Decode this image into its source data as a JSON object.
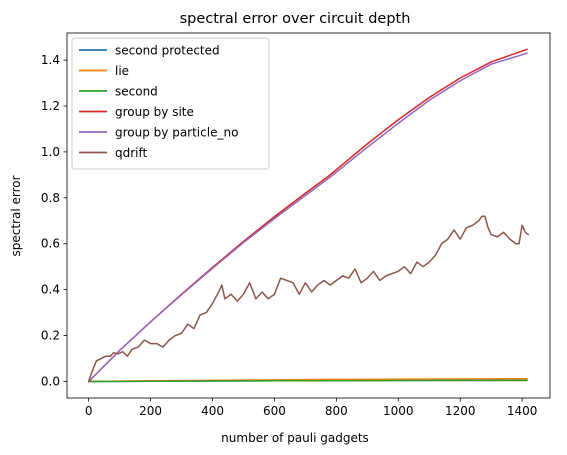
{
  "chart_data": {
    "type": "line",
    "title": "spectral error over circuit depth",
    "xlabel": "number of pauli gadgets",
    "ylabel": "spectral error",
    "xlim": [
      -70,
      1490
    ],
    "ylim": [
      -0.072,
      1.518
    ],
    "xticks": [
      0,
      200,
      400,
      600,
      800,
      1000,
      1200,
      1400
    ],
    "yticks": [
      0.0,
      0.2,
      0.4,
      0.6,
      0.8,
      1.0,
      1.2,
      1.4
    ],
    "ytick_labels": [
      "0.0",
      "0.2",
      "0.4",
      "0.6",
      "0.8",
      "1.0",
      "1.2",
      "1.4"
    ],
    "grid": false,
    "legend_position": "upper-left",
    "series": [
      {
        "name": "second protected",
        "color": "#1f77b4",
        "x": [
          0,
          200,
          400,
          600,
          800,
          1000,
          1200,
          1416
        ],
        "y": [
          0,
          0.001,
          0.002,
          0.003,
          0.004,
          0.004,
          0.005,
          0.005
        ]
      },
      {
        "name": "lie",
        "color": "#ff7f0e",
        "x": [
          0,
          200,
          400,
          600,
          800,
          1000,
          1200,
          1416
        ],
        "y": [
          0,
          0.003,
          0.005,
          0.007,
          0.009,
          0.01,
          0.011,
          0.012
        ]
      },
      {
        "name": "second",
        "color": "#2ca02c",
        "x": [
          0,
          200,
          400,
          600,
          800,
          1000,
          1200,
          1416
        ],
        "y": [
          0,
          0.001,
          0.002,
          0.003,
          0.003,
          0.004,
          0.004,
          0.005
        ]
      },
      {
        "name": "group by site",
        "color": "#d62728",
        "x": [
          0,
          100,
          200,
          300,
          400,
          500,
          600,
          700,
          780,
          900,
          1000,
          1100,
          1200,
          1300,
          1416
        ],
        "y": [
          0,
          0.135,
          0.26,
          0.38,
          0.497,
          0.61,
          0.718,
          0.82,
          0.9,
          1.035,
          1.14,
          1.237,
          1.322,
          1.392,
          1.447
        ]
      },
      {
        "name": "group by particle_no",
        "color": "#9467bd",
        "x": [
          0,
          100,
          200,
          300,
          400,
          500,
          600,
          700,
          780,
          900,
          1000,
          1100,
          1200,
          1300,
          1416
        ],
        "y": [
          0,
          0.135,
          0.26,
          0.378,
          0.493,
          0.605,
          0.71,
          0.81,
          0.89,
          1.02,
          1.125,
          1.225,
          1.31,
          1.382,
          1.43
        ]
      },
      {
        "name": "qdrift",
        "color": "#8c564b",
        "x": [
          0,
          10,
          25,
          40,
          55,
          70,
          80,
          95,
          110,
          125,
          140,
          160,
          180,
          200,
          220,
          240,
          260,
          280,
          300,
          320,
          340,
          360,
          380,
          400,
          420,
          430,
          440,
          460,
          480,
          500,
          520,
          540,
          560,
          580,
          600,
          620,
          640,
          660,
          680,
          700,
          720,
          740,
          760,
          780,
          800,
          820,
          840,
          860,
          880,
          900,
          920,
          940,
          960,
          980,
          1000,
          1020,
          1040,
          1060,
          1080,
          1100,
          1120,
          1140,
          1160,
          1180,
          1200,
          1220,
          1240,
          1260,
          1270,
          1280,
          1290,
          1300,
          1320,
          1340,
          1360,
          1380,
          1390,
          1400,
          1410,
          1420
        ],
        "y": [
          0,
          0.04,
          0.09,
          0.1,
          0.11,
          0.11,
          0.125,
          0.12,
          0.13,
          0.11,
          0.14,
          0.15,
          0.18,
          0.165,
          0.165,
          0.15,
          0.18,
          0.2,
          0.21,
          0.25,
          0.23,
          0.29,
          0.3,
          0.34,
          0.39,
          0.42,
          0.36,
          0.38,
          0.35,
          0.38,
          0.43,
          0.36,
          0.39,
          0.36,
          0.38,
          0.45,
          0.44,
          0.43,
          0.38,
          0.43,
          0.39,
          0.42,
          0.44,
          0.42,
          0.44,
          0.46,
          0.45,
          0.49,
          0.43,
          0.45,
          0.48,
          0.44,
          0.46,
          0.47,
          0.48,
          0.5,
          0.47,
          0.52,
          0.5,
          0.52,
          0.55,
          0.6,
          0.62,
          0.66,
          0.62,
          0.67,
          0.68,
          0.7,
          0.72,
          0.72,
          0.67,
          0.64,
          0.63,
          0.65,
          0.62,
          0.6,
          0.6,
          0.68,
          0.65,
          0.64
        ]
      }
    ]
  }
}
